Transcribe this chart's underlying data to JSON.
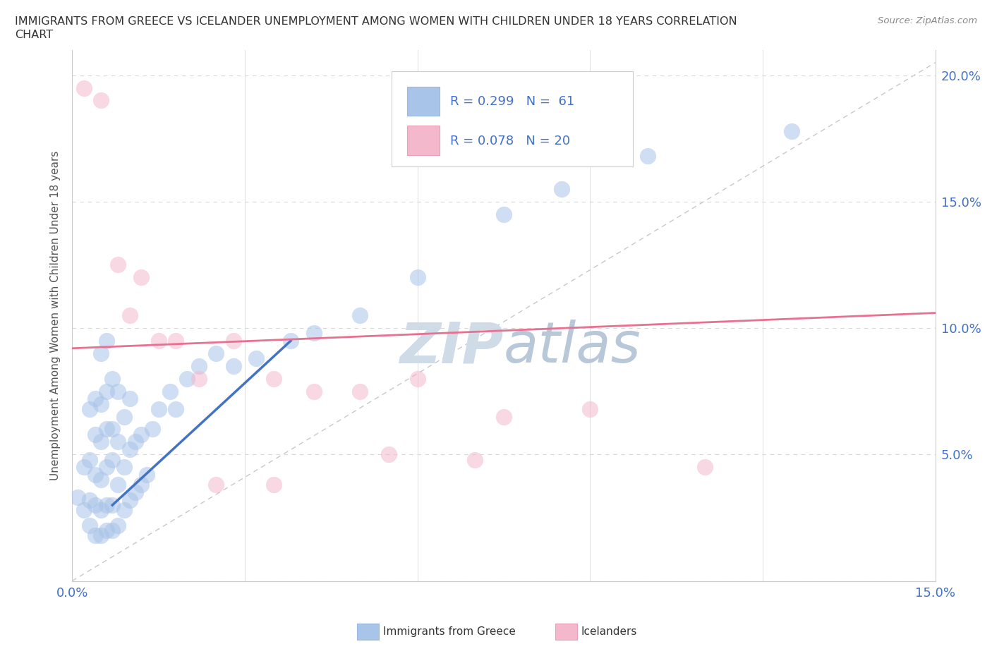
{
  "title_line1": "IMMIGRANTS FROM GREECE VS ICELANDER UNEMPLOYMENT AMONG WOMEN WITH CHILDREN UNDER 18 YEARS CORRELATION",
  "title_line2": "CHART",
  "source": "Source: ZipAtlas.com",
  "ylabel": "Unemployment Among Women with Children Under 18 years",
  "xlim": [
    0.0,
    0.15
  ],
  "ylim": [
    0.0,
    0.21
  ],
  "blue_color": "#a8c4e8",
  "pink_color": "#f4b8cc",
  "blue_line_color": "#4472c4",
  "pink_line_color": "#e87090",
  "grid_color": "#d8d8d8",
  "watermark_color": "#cfdce8",
  "blue_scatter_x": [
    0.001,
    0.002,
    0.002,
    0.003,
    0.003,
    0.003,
    0.003,
    0.004,
    0.004,
    0.004,
    0.004,
    0.004,
    0.005,
    0.005,
    0.005,
    0.005,
    0.005,
    0.005,
    0.006,
    0.006,
    0.006,
    0.006,
    0.006,
    0.006,
    0.007,
    0.007,
    0.007,
    0.007,
    0.007,
    0.008,
    0.008,
    0.008,
    0.008,
    0.009,
    0.009,
    0.009,
    0.01,
    0.01,
    0.01,
    0.011,
    0.011,
    0.012,
    0.012,
    0.013,
    0.014,
    0.015,
    0.017,
    0.018,
    0.02,
    0.022,
    0.025,
    0.028,
    0.032,
    0.038,
    0.042,
    0.05,
    0.06,
    0.075,
    0.085,
    0.1,
    0.125
  ],
  "blue_scatter_y": [
    0.033,
    0.028,
    0.045,
    0.022,
    0.032,
    0.048,
    0.068,
    0.018,
    0.03,
    0.042,
    0.058,
    0.072,
    0.018,
    0.028,
    0.04,
    0.055,
    0.07,
    0.09,
    0.02,
    0.03,
    0.045,
    0.06,
    0.075,
    0.095,
    0.02,
    0.03,
    0.048,
    0.06,
    0.08,
    0.022,
    0.038,
    0.055,
    0.075,
    0.028,
    0.045,
    0.065,
    0.032,
    0.052,
    0.072,
    0.035,
    0.055,
    0.038,
    0.058,
    0.042,
    0.06,
    0.068,
    0.075,
    0.068,
    0.08,
    0.085,
    0.09,
    0.085,
    0.088,
    0.095,
    0.098,
    0.105,
    0.12,
    0.145,
    0.155,
    0.168,
    0.178
  ],
  "pink_scatter_x": [
    0.002,
    0.005,
    0.008,
    0.01,
    0.012,
    0.015,
    0.018,
    0.022,
    0.028,
    0.035,
    0.042,
    0.05,
    0.06,
    0.075,
    0.09,
    0.11,
    0.025,
    0.035,
    0.055,
    0.07
  ],
  "pink_scatter_y": [
    0.195,
    0.19,
    0.125,
    0.105,
    0.12,
    0.095,
    0.095,
    0.08,
    0.095,
    0.08,
    0.075,
    0.075,
    0.08,
    0.065,
    0.068,
    0.045,
    0.038,
    0.038,
    0.05,
    0.048
  ],
  "blue_trend_x": [
    0.007,
    0.038
  ],
  "blue_trend_y": [
    0.03,
    0.095
  ],
  "pink_trend_x": [
    0.0,
    0.15
  ],
  "pink_trend_y": [
    0.092,
    0.106
  ],
  "diag_line_x": [
    0.0,
    0.15
  ],
  "diag_line_y": [
    0.0,
    0.205
  ]
}
